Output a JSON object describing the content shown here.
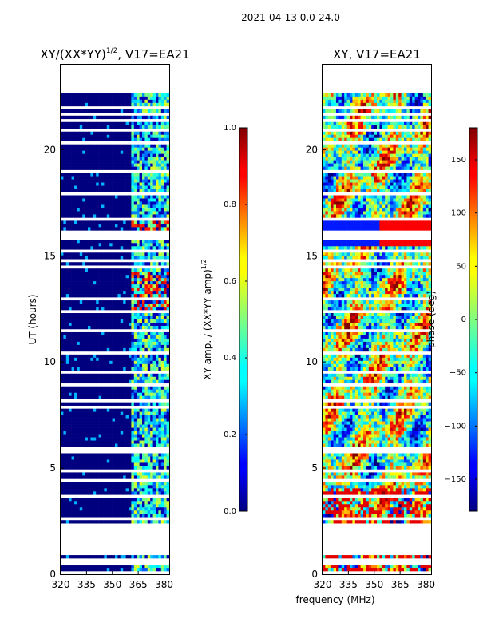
{
  "figure": {
    "suptitle": "2021-04-13 0.0-24.0",
    "xlabel": "frequency (MHz)",
    "colors": {
      "white": "#ffffff",
      "axis": "#000000",
      "jet_dark_blue": "#00007f",
      "jet_blue": "#0000ff",
      "jet_cyan": "#00ffff",
      "jet_yellow": "#ffff00",
      "jet_red": "#ff0000",
      "jet_dark_red": "#7f0000"
    }
  },
  "chart_data": [
    {
      "type": "heatmap",
      "id": "amp",
      "title_base": "XY/(XX*YY)",
      "title_exp": "1/2",
      "title_tail": ", V17=EA21",
      "ylabel": "UT (hours)",
      "xlim": [
        320,
        383
      ],
      "ylim": [
        0,
        24
      ],
      "xticks": [
        320,
        335,
        350,
        365,
        380
      ],
      "yticks": [
        0,
        5,
        10,
        15,
        20
      ],
      "gaps_hours": [
        [
          0.93,
          2.35
        ],
        [
          22.85,
          24
        ]
      ],
      "bright_band_mhz": [
        361,
        383
      ],
      "colorbar": {
        "label_base": "XY amp. / (XX*YY amp)",
        "label_exp": "1/2",
        "range": [
          0,
          1
        ],
        "ticks": [
          "0.0",
          "0.2",
          "0.4",
          "0.6",
          "0.8",
          "1.0"
        ]
      }
    },
    {
      "type": "heatmap",
      "id": "phase",
      "title": "XY, V17=EA21",
      "xlim": [
        320,
        383
      ],
      "ylim": [
        0,
        24
      ],
      "xticks": [
        320,
        335,
        350,
        365,
        380
      ],
      "yticks": [
        0,
        5,
        10,
        15,
        20
      ],
      "gaps_hours": [
        [
          0.93,
          2.35
        ],
        [
          22.85,
          24
        ]
      ],
      "colorbar": {
        "label": "phase (deg)",
        "range": [
          -180,
          180
        ],
        "ticks": [
          "−150",
          "−100",
          "−50",
          "0",
          "50",
          "100",
          "150"
        ]
      }
    }
  ]
}
